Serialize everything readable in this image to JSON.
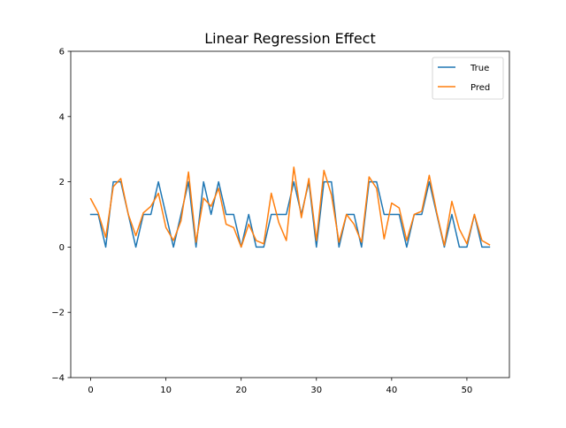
{
  "chart_data": {
    "type": "line",
    "title": "Linear Regression Effect",
    "xlabel": "",
    "ylabel": "",
    "xlim": [
      -2.65,
      55.65
    ],
    "ylim": [
      -4,
      6
    ],
    "xticks": [
      0,
      10,
      20,
      30,
      40,
      50
    ],
    "yticks": [
      -4,
      -2,
      0,
      2,
      4,
      6
    ],
    "legend_position": "top-right",
    "grid": false,
    "series": [
      {
        "name": "True",
        "color": "#1f77b4",
        "x": [
          0,
          1,
          2,
          3,
          4,
          5,
          6,
          7,
          8,
          9,
          10,
          11,
          12,
          13,
          14,
          15,
          16,
          17,
          18,
          19,
          20,
          21,
          22,
          23,
          24,
          25,
          26,
          27,
          28,
          29,
          30,
          31,
          32,
          33,
          34,
          35,
          36,
          37,
          38,
          39,
          40,
          41,
          42,
          43,
          44,
          45,
          46,
          47,
          48,
          49,
          50,
          51,
          52,
          53
        ],
        "values": [
          1,
          1,
          0,
          2,
          2,
          1,
          0,
          1,
          1,
          2,
          1,
          0,
          1,
          2,
          0,
          2,
          1,
          2,
          1,
          1,
          0,
          1,
          0,
          0,
          1,
          1,
          1,
          2,
          1,
          2,
          0,
          2,
          2,
          0,
          1,
          1,
          0,
          2,
          2,
          1,
          1,
          1,
          0,
          1,
          1,
          2,
          1,
          0,
          1,
          0,
          0,
          1,
          0,
          0
        ]
      },
      {
        "name": "Pred",
        "color": "#ff7f0e",
        "x": [
          0,
          1,
          2,
          3,
          4,
          5,
          6,
          7,
          8,
          9,
          10,
          11,
          12,
          13,
          14,
          15,
          16,
          17,
          18,
          19,
          20,
          21,
          22,
          23,
          24,
          25,
          26,
          27,
          28,
          29,
          30,
          31,
          32,
          33,
          34,
          35,
          36,
          37,
          38,
          39,
          40,
          41,
          42,
          43,
          44,
          45,
          46,
          47,
          48,
          49,
          50,
          51,
          52,
          53
        ],
        "values": [
          1.48,
          1.05,
          0.3,
          1.85,
          2.1,
          1.0,
          0.35,
          1.05,
          1.25,
          1.65,
          0.6,
          0.2,
          0.8,
          2.3,
          0.15,
          1.5,
          1.25,
          1.8,
          0.7,
          0.6,
          0.0,
          0.7,
          0.2,
          0.1,
          1.65,
          0.75,
          0.2,
          2.45,
          0.9,
          2.1,
          0.2,
          2.35,
          1.6,
          0.15,
          1.0,
          0.7,
          0.15,
          2.15,
          1.8,
          0.25,
          1.35,
          1.2,
          0.2,
          1.0,
          1.1,
          2.2,
          1.05,
          0.05,
          1.4,
          0.55,
          0.1,
          1.0,
          0.2,
          0.07
        ]
      }
    ]
  }
}
